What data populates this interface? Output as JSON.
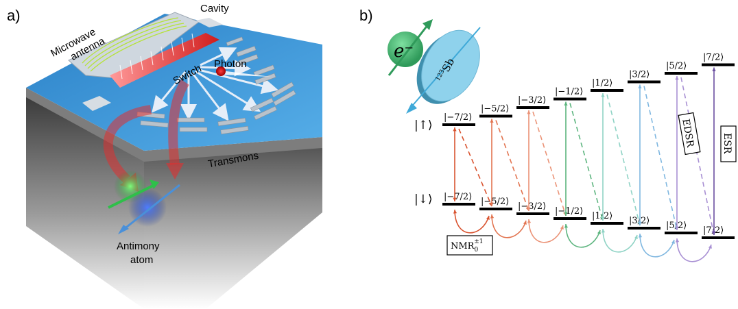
{
  "panel_a": {
    "panel_label": "a)",
    "labels": {
      "microwave_antenna": [
        "Microwave",
        "antenna"
      ],
      "cavity": "Cavity",
      "switch": "Switch",
      "photon": "Photon",
      "transmons": "Transmons",
      "antimony_atom": [
        "Antimony",
        "atom"
      ]
    }
  },
  "panel_b": {
    "panel_label": "b)",
    "electron_label": "e⁻",
    "nucleus_mass": "123",
    "nucleus_symbol": "Sb",
    "spin_up_label": "|↑⟩",
    "spin_down_label": "|↓⟩",
    "up_levels": [
      "|−7/2⟩",
      "|−5/2⟩",
      "|−3/2⟩",
      "|−1/2⟩",
      "|1/2⟩",
      "|3/2⟩",
      "|5/2⟩",
      "|7/2⟩"
    ],
    "down_levels": [
      "|−7/2⟩",
      "|−5/2⟩",
      "|−3/2⟩",
      "|−1/2⟩",
      "|1/2⟩",
      "|3/2⟩",
      "|5/2⟩",
      "|7/2⟩"
    ],
    "edsr_label": "EDSR",
    "esr_label": "ESR",
    "nmr_label": "NMR",
    "nmr_sub": "0",
    "nmr_sup": "±1",
    "colors": [
      "#d9532f",
      "#e27450",
      "#eb9377",
      "#5db57f",
      "#8fd3c5",
      "#7fb7e0",
      "#a88fd3",
      "#6a4ea0"
    ]
  }
}
